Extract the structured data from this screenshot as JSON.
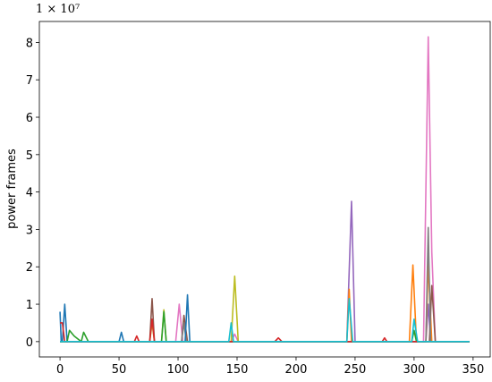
{
  "chart_data": {
    "type": "line",
    "y_label": "power frames",
    "y_offset_label": "1 × 10⁷",
    "xlim": [
      -17.5,
      364.5
    ],
    "ylim": [
      -0.41,
      8.56
    ],
    "xticks": [
      0,
      50,
      100,
      150,
      200,
      250,
      300,
      350
    ],
    "yticks": [
      0,
      1,
      2,
      3,
      4,
      5,
      6,
      7,
      8
    ],
    "line_width": 1.6,
    "series": [
      {
        "color": "#e377c2",
        "x": [
          0,
          98,
          101,
          104,
          145,
          148,
          151,
          308,
          312,
          315,
          318,
          347
        ],
        "values": [
          0,
          0,
          1.0,
          0,
          0,
          0.2,
          0,
          0,
          8.15,
          2.4,
          0,
          0
        ]
      },
      {
        "color": "#9467bd",
        "x": [
          0,
          243,
          247,
          250,
          310,
          312,
          314,
          347
        ],
        "values": [
          0,
          0,
          3.75,
          0,
          0,
          1.0,
          0,
          0
        ]
      },
      {
        "color": "#ff7f0e",
        "x": [
          0,
          243,
          245,
          247,
          296,
          299,
          302,
          310,
          312,
          315,
          347
        ],
        "values": [
          0,
          0,
          1.4,
          0,
          0,
          2.05,
          0,
          0,
          2.1,
          0,
          0
        ]
      },
      {
        "color": "#bcbd22",
        "x": [
          0,
          76,
          78,
          80,
          86,
          88,
          90,
          145,
          148,
          151,
          347
        ],
        "values": [
          0,
          0,
          0.5,
          0,
          0,
          0.85,
          0,
          0,
          1.75,
          0,
          0
        ]
      },
      {
        "color": "#8c564b",
        "x": [
          0,
          76,
          78,
          80,
          103,
          105,
          108,
          313,
          315,
          318,
          347
        ],
        "values": [
          0,
          0,
          1.15,
          0,
          0,
          0.7,
          0,
          0,
          1.5,
          0,
          0
        ]
      },
      {
        "color": "#7f7f7f",
        "x": [
          0,
          103,
          105,
          107,
          310,
          312,
          314,
          347
        ],
        "values": [
          0,
          0,
          0.5,
          0,
          0,
          3.05,
          0,
          0
        ]
      },
      {
        "color": "#1f77b4",
        "x": [
          0,
          1,
          2,
          4,
          6,
          50,
          52,
          54,
          106,
          108,
          110,
          347
        ],
        "values": [
          0.8,
          0,
          0,
          1.0,
          0,
          0,
          0.25,
          0,
          0,
          1.25,
          0,
          0
        ]
      },
      {
        "color": "#2ca02c",
        "x": [
          0,
          6,
          8,
          12,
          18,
          20,
          24,
          86,
          88,
          90,
          298,
          300,
          302,
          347
        ],
        "values": [
          0,
          0,
          0.3,
          0.15,
          0,
          0.25,
          0,
          0,
          0.8,
          0,
          0,
          0.3,
          0,
          0
        ]
      },
      {
        "color": "#d62728",
        "x": [
          0,
          2,
          4,
          63,
          65,
          67,
          76,
          78,
          80,
          182,
          185,
          188,
          273,
          275,
          277,
          347
        ],
        "values": [
          0.5,
          0.5,
          0,
          0,
          0.15,
          0,
          0,
          0.6,
          0,
          0,
          0.1,
          0,
          0,
          0.1,
          0,
          0
        ]
      },
      {
        "color": "#17becf",
        "x": [
          0,
          143,
          145,
          147,
          243,
          245,
          248,
          298,
          300,
          303,
          347
        ],
        "values": [
          0,
          0,
          0.5,
          0,
          0,
          1.15,
          0,
          0,
          0.6,
          0,
          0
        ]
      }
    ]
  }
}
